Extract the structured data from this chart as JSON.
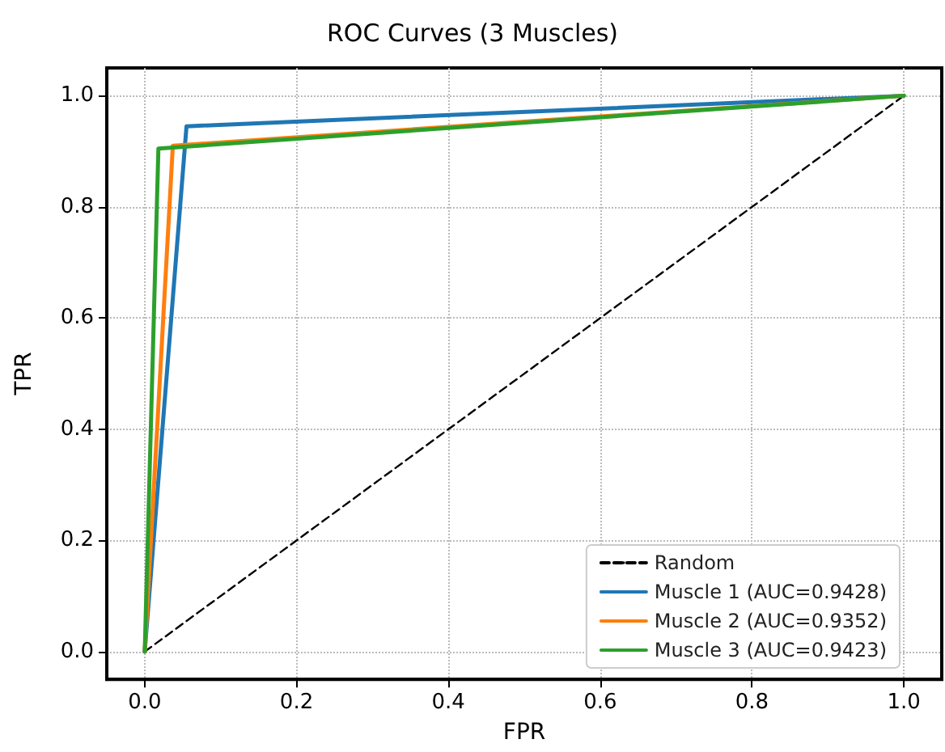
{
  "chart_data": {
    "type": "line",
    "title": "ROC Curves (3 Muscles)",
    "xlabel": "FPR",
    "ylabel": "TPR",
    "series": [
      {
        "name": "Random",
        "color": "#000000",
        "x": [
          0,
          1
        ],
        "values": [
          0,
          1
        ],
        "line_style": "dashed"
      },
      {
        "name": "Muscle 1 (AUC=0.9428)",
        "color": "#1f77b4",
        "x": [
          0,
          0.055,
          1
        ],
        "values": [
          0,
          0.945,
          1
        ]
      },
      {
        "name": "Muscle 2 (AUC=0.9352)",
        "color": "#ff7f0e",
        "x": [
          0,
          0.037,
          1
        ],
        "values": [
          0,
          0.91,
          1
        ]
      },
      {
        "name": "Muscle 3 (AUC=0.9423)",
        "color": "#2ca02c",
        "x": [
          0,
          0.018,
          1
        ],
        "values": [
          0,
          0.905,
          1
        ]
      }
    ],
    "xlim": [
      -0.05,
      1.05
    ],
    "ylim": [
      -0.05,
      1.05
    ],
    "xticks": [
      {
        "value": 0,
        "label": "0.0"
      },
      0.2,
      0.4,
      0.6,
      0.8,
      {
        "value": 1,
        "label": "1.0"
      }
    ],
    "yticks": [
      {
        "value": 0,
        "label": "0.0"
      },
      0.2,
      0.4,
      0.6,
      0.8,
      {
        "value": 1,
        "label": "1.0"
      }
    ],
    "grid": true,
    "legend": "bottom right",
    "line_style": "solid",
    "marker": "none"
  }
}
